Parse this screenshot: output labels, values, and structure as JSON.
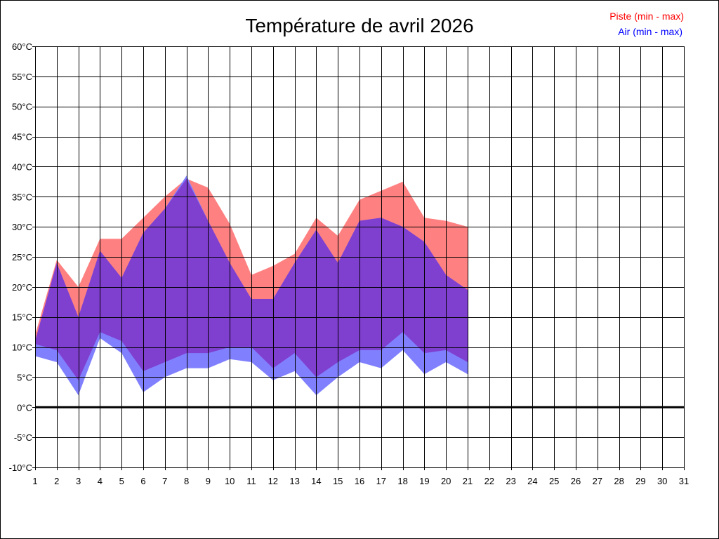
{
  "chart_data": {
    "type": "area",
    "title": "Température de avril 2026",
    "x": [
      1,
      2,
      3,
      4,
      5,
      6,
      7,
      8,
      9,
      10,
      11,
      12,
      13,
      14,
      15,
      16,
      17,
      18,
      19,
      20,
      21,
      22,
      23,
      24,
      25,
      26,
      27,
      28,
      29,
      30,
      31
    ],
    "x_tick_labels": [
      "1",
      "2",
      "3",
      "4",
      "5",
      "6",
      "7",
      "8",
      "9",
      "10",
      "11",
      "12",
      "13",
      "14",
      "15",
      "16",
      "17",
      "18",
      "19",
      "20",
      "21",
      "22",
      "23",
      "24",
      "25",
      "26",
      "27",
      "28",
      "29",
      "30",
      "31"
    ],
    "y_tick_labels": [
      "60°C",
      "55°C",
      "50°C",
      "45°C",
      "40°C",
      "35°C",
      "30°C",
      "25°C",
      "20°C",
      "15°C",
      "10°C",
      "5°C",
      "0°C",
      "-5°C",
      "-10°C"
    ],
    "y_ticks": [
      60,
      55,
      50,
      45,
      40,
      35,
      30,
      25,
      20,
      15,
      10,
      5,
      0,
      -5,
      -10
    ],
    "xlim": [
      1,
      31
    ],
    "ylim": [
      -10,
      60
    ],
    "grid": true,
    "zero_line": true,
    "legend_position": "top-right",
    "series": [
      {
        "name": "Piste (min - max)",
        "color": "#ff8080",
        "legend_color": "#ff0000",
        "min": [
          10.5,
          9.5,
          4.5,
          12.5,
          11,
          6,
          7.5,
          9,
          9,
          10,
          10,
          6.5,
          9,
          5,
          7.5,
          9.5,
          9.5,
          12.5,
          9,
          9.5,
          7.5
        ],
        "max": [
          12,
          24.5,
          20,
          28,
          28,
          31.5,
          35,
          38,
          36.5,
          30.5,
          22,
          23.5,
          25.5,
          31.5,
          28.5,
          34.5,
          36,
          37.5,
          31.5,
          31,
          30
        ]
      },
      {
        "name": "Air (min - max)",
        "color": "#8080ff",
        "legend_color": "#0000ff",
        "min": [
          8.5,
          7.5,
          2,
          11.5,
          9,
          2.5,
          5,
          6.5,
          6.5,
          8,
          7.5,
          4.5,
          6,
          2,
          5,
          7.5,
          6.5,
          9.5,
          5.5,
          7.5,
          5.5
        ],
        "max": [
          11,
          24,
          15,
          26,
          21.5,
          29,
          33,
          38.5,
          31,
          24,
          18,
          18,
          24,
          29.5,
          24,
          31,
          31.5,
          30,
          27.5,
          22,
          19.5
        ]
      }
    ],
    "overlap_color": "#7f3fcf"
  }
}
